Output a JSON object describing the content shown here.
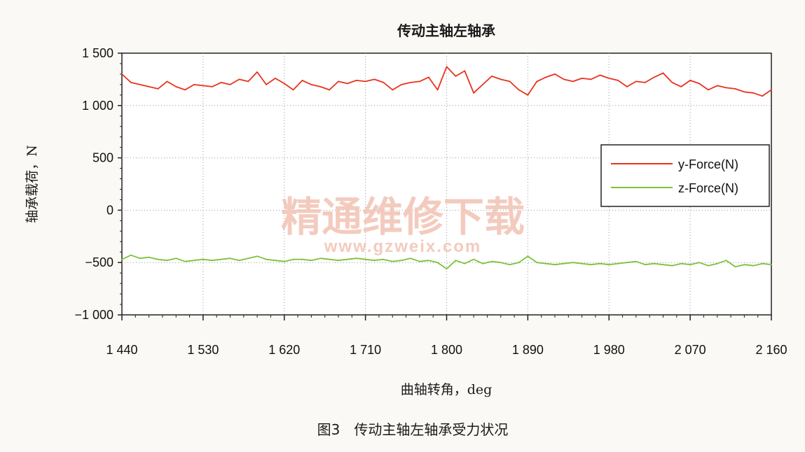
{
  "chart_data": {
    "type": "line",
    "title": "传动主轴左轴承",
    "xlabel": "曲轴转角，deg",
    "ylabel": "轴承载荷，N",
    "xlim": [
      1440,
      2160
    ],
    "ylim": [
      -1000,
      1500
    ],
    "xticks": [
      1440,
      1530,
      1620,
      1710,
      1800,
      1890,
      1980,
      2070,
      2160
    ],
    "xtick_labels": [
      "1 440",
      "1 530",
      "1 620",
      "1 710",
      "1 800",
      "1 890",
      "1 980",
      "2 070",
      "2 160"
    ],
    "yticks": [
      1500,
      1000,
      500,
      0,
      -500,
      -1000
    ],
    "ytick_labels": [
      "1 500",
      "1 000",
      "500",
      "0",
      "−500",
      "−1 000"
    ],
    "grid": true,
    "legend_position": "right",
    "series": [
      {
        "name": "y-Force(N)",
        "color": "#e8321e",
        "x": [
          1440,
          1450,
          1460,
          1470,
          1480,
          1490,
          1500,
          1510,
          1520,
          1530,
          1540,
          1550,
          1560,
          1570,
          1580,
          1590,
          1600,
          1610,
          1620,
          1630,
          1640,
          1650,
          1660,
          1670,
          1680,
          1690,
          1700,
          1710,
          1720,
          1730,
          1740,
          1750,
          1760,
          1770,
          1780,
          1790,
          1800,
          1810,
          1820,
          1830,
          1840,
          1850,
          1860,
          1870,
          1880,
          1890,
          1900,
          1910,
          1920,
          1930,
          1940,
          1950,
          1960,
          1970,
          1980,
          1990,
          2000,
          2010,
          2020,
          2030,
          2040,
          2050,
          2060,
          2070,
          2080,
          2090,
          2100,
          2110,
          2120,
          2130,
          2140,
          2150,
          2160
        ],
        "values": [
          1300,
          1220,
          1200,
          1180,
          1160,
          1230,
          1180,
          1150,
          1200,
          1190,
          1180,
          1220,
          1200,
          1250,
          1230,
          1320,
          1200,
          1260,
          1210,
          1150,
          1240,
          1200,
          1180,
          1150,
          1230,
          1210,
          1240,
          1230,
          1250,
          1220,
          1150,
          1200,
          1220,
          1230,
          1270,
          1150,
          1370,
          1280,
          1330,
          1120,
          1200,
          1280,
          1250,
          1230,
          1150,
          1100,
          1230,
          1270,
          1300,
          1250,
          1230,
          1260,
          1250,
          1290,
          1260,
          1240,
          1180,
          1230,
          1220,
          1270,
          1310,
          1220,
          1180,
          1240,
          1210,
          1150,
          1190,
          1170,
          1160,
          1130,
          1120,
          1090,
          1150
        ]
      },
      {
        "name": "z-Force(N)",
        "color": "#7cc23a",
        "x": [
          1440,
          1450,
          1460,
          1470,
          1480,
          1490,
          1500,
          1510,
          1520,
          1530,
          1540,
          1550,
          1560,
          1570,
          1580,
          1590,
          1600,
          1610,
          1620,
          1630,
          1640,
          1650,
          1660,
          1670,
          1680,
          1690,
          1700,
          1710,
          1720,
          1730,
          1740,
          1750,
          1760,
          1770,
          1780,
          1790,
          1800,
          1810,
          1820,
          1830,
          1840,
          1850,
          1860,
          1870,
          1880,
          1890,
          1900,
          1910,
          1920,
          1930,
          1940,
          1950,
          1960,
          1970,
          1980,
          1990,
          2000,
          2010,
          2020,
          2030,
          2040,
          2050,
          2060,
          2070,
          2080,
          2090,
          2100,
          2110,
          2120,
          2130,
          2140,
          2150,
          2160
        ],
        "values": [
          -470,
          -430,
          -460,
          -450,
          -470,
          -480,
          -460,
          -490,
          -480,
          -470,
          -480,
          -470,
          -460,
          -480,
          -460,
          -440,
          -470,
          -480,
          -490,
          -470,
          -470,
          -480,
          -460,
          -470,
          -480,
          -470,
          -460,
          -470,
          -480,
          -470,
          -490,
          -480,
          -460,
          -490,
          -480,
          -500,
          -560,
          -480,
          -510,
          -470,
          -510,
          -490,
          -500,
          -520,
          -500,
          -440,
          -500,
          -510,
          -520,
          -510,
          -500,
          -510,
          -520,
          -510,
          -520,
          -510,
          -500,
          -490,
          -520,
          -510,
          -520,
          -530,
          -510,
          -520,
          -500,
          -530,
          -510,
          -480,
          -540,
          -520,
          -530,
          -510,
          -520
        ]
      }
    ]
  },
  "caption": "图3　传动主轴左轴承受力状况",
  "watermark": {
    "main": "精通维修下载",
    "url": "www.gzweix.com"
  }
}
